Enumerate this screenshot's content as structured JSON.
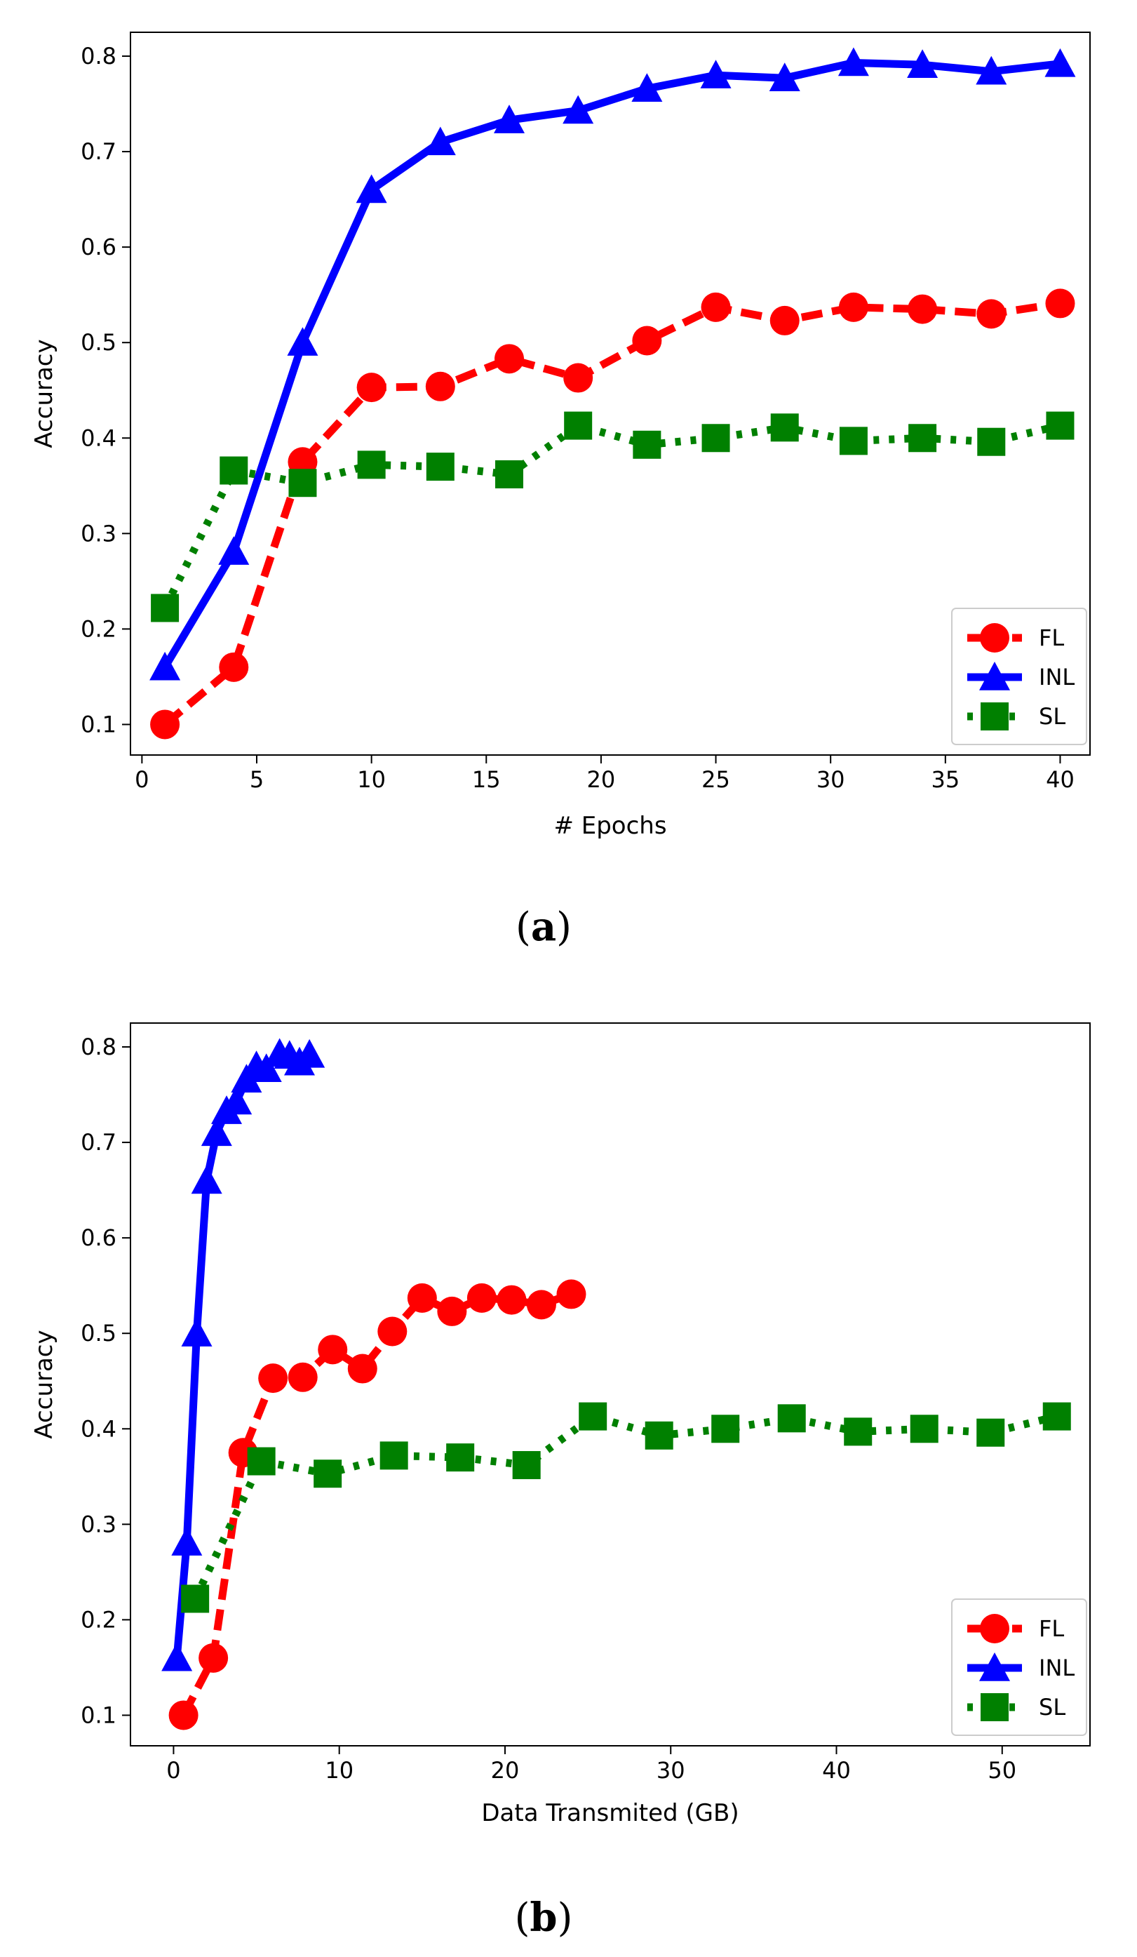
{
  "chart_data": [
    {
      "id": "a",
      "type": "line",
      "caption_letter": "a",
      "xlabel": "# Epochs",
      "ylabel": "Accuracy",
      "xlim": [
        -0.5,
        41.3
      ],
      "ylim": [
        0.068,
        0.825
      ],
      "xticks": [
        0,
        5,
        10,
        15,
        20,
        25,
        30,
        35,
        40
      ],
      "yticks": [
        0.1,
        0.2,
        0.3,
        0.4,
        0.5,
        0.6,
        0.7,
        0.8
      ],
      "legend_position": "lower-right",
      "series": [
        {
          "name": "FL",
          "color": "#ff0000",
          "style": "dashed",
          "marker": "circle",
          "x": [
            1,
            4,
            7,
            10,
            13,
            16,
            19,
            22,
            25,
            28,
            31,
            34,
            37,
            40
          ],
          "y": [
            0.1,
            0.16,
            0.375,
            0.453,
            0.454,
            0.483,
            0.463,
            0.502,
            0.537,
            0.523,
            0.537,
            0.535,
            0.53,
            0.541
          ]
        },
        {
          "name": "INL",
          "color": "#0000ff",
          "style": "solid",
          "marker": "triangle",
          "x": [
            1,
            4,
            7,
            10,
            13,
            16,
            19,
            22,
            25,
            28,
            31,
            34,
            37,
            40
          ],
          "y": [
            0.16,
            0.281,
            0.5,
            0.66,
            0.71,
            0.733,
            0.743,
            0.766,
            0.78,
            0.777,
            0.793,
            0.791,
            0.784,
            0.792
          ]
        },
        {
          "name": "SL",
          "color": "#008000",
          "style": "dotted",
          "marker": "square",
          "x": [
            1,
            4,
            7,
            10,
            13,
            16,
            19,
            22,
            25,
            28,
            31,
            34,
            37,
            40
          ],
          "y": [
            0.222,
            0.366,
            0.353,
            0.372,
            0.37,
            0.362,
            0.413,
            0.393,
            0.4,
            0.411,
            0.397,
            0.4,
            0.396,
            0.413
          ]
        }
      ]
    },
    {
      "id": "b",
      "type": "line",
      "caption_letter": "b",
      "xlabel": "Data Transmited (GB)",
      "ylabel": "Accuracy",
      "xlim": [
        -2.6,
        55.3
      ],
      "ylim": [
        0.068,
        0.825
      ],
      "xticks": [
        0,
        10,
        20,
        30,
        40,
        50
      ],
      "yticks": [
        0.1,
        0.2,
        0.3,
        0.4,
        0.5,
        0.6,
        0.7,
        0.8
      ],
      "legend_position": "lower-right",
      "series": [
        {
          "name": "FL",
          "color": "#ff0000",
          "style": "dashed",
          "marker": "circle",
          "x": [
            0.6,
            2.4,
            4.2,
            6.0,
            7.8,
            9.6,
            11.4,
            13.2,
            15.0,
            16.8,
            18.6,
            20.4,
            22.2,
            24.0
          ],
          "y": [
            0.1,
            0.16,
            0.375,
            0.453,
            0.454,
            0.483,
            0.463,
            0.502,
            0.537,
            0.523,
            0.537,
            0.535,
            0.53,
            0.541
          ]
        },
        {
          "name": "INL",
          "color": "#0000ff",
          "style": "solid",
          "marker": "triangle",
          "x": [
            0.2,
            0.8,
            1.4,
            2.0,
            2.6,
            3.2,
            3.8,
            4.4,
            5.0,
            5.6,
            6.4,
            7.0,
            7.6,
            8.2
          ],
          "y": [
            0.16,
            0.281,
            0.5,
            0.66,
            0.71,
            0.733,
            0.743,
            0.766,
            0.78,
            0.777,
            0.793,
            0.791,
            0.784,
            0.792
          ]
        },
        {
          "name": "SL",
          "color": "#008000",
          "style": "dotted",
          "marker": "square",
          "x": [
            1.3,
            5.3,
            9.3,
            13.3,
            17.3,
            21.3,
            25.3,
            29.3,
            33.3,
            37.3,
            41.3,
            45.3,
            49.3,
            53.3
          ],
          "y": [
            0.222,
            0.366,
            0.353,
            0.372,
            0.37,
            0.362,
            0.413,
            0.393,
            0.4,
            0.411,
            0.397,
            0.4,
            0.396,
            0.413
          ]
        }
      ]
    }
  ]
}
